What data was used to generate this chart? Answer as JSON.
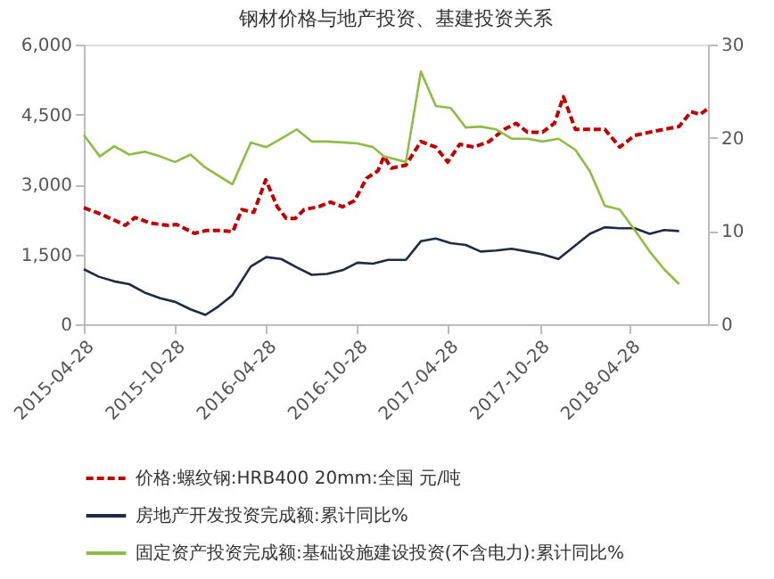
{
  "chart_data": {
    "type": "line",
    "title": "钢材价格与地产投资、基建投资关系",
    "xlim": [
      "2015-04-28",
      "2018-10-01"
    ],
    "xticks": [
      "2015-04-28",
      "2015-10-28",
      "2016-04-28",
      "2016-10-28",
      "2017-04-28",
      "2017-10-28",
      "2018-04-28"
    ],
    "ylim": [
      0,
      6000
    ],
    "yticks": [
      {
        "value": 0,
        "label": "0"
      },
      {
        "value": 1500,
        "label": "1,500"
      },
      {
        "value": 3000,
        "label": "3,000"
      },
      {
        "value": 4500,
        "label": "4,500"
      },
      {
        "value": 6000,
        "label": "6,000"
      }
    ],
    "y2lim": [
      0,
      30
    ],
    "y2ticks": [
      0,
      10,
      20,
      30
    ],
    "grid": false,
    "legend": "bottom",
    "series": [
      {
        "name": "价格:螺纹钢:HRB400 20mm:全国 元/吨",
        "color": "#c00000",
        "line_style": "dashed",
        "x": [
          "2015-04-28",
          "2015-05-30",
          "2015-07-05",
          "2015-07-20",
          "2015-08-09",
          "2015-09-08",
          "2015-10-14",
          "2015-10-31",
          "2015-12-06",
          "2015-12-30",
          "2016-01-23",
          "2016-02-21",
          "2016-03-10",
          "2016-04-03",
          "2016-04-27",
          "2016-05-20",
          "2016-06-07",
          "2016-06-25",
          "2016-07-13",
          "2016-08-11",
          "2016-09-04",
          "2016-09-28",
          "2016-10-22",
          "2016-11-15",
          "2016-12-08",
          "2016-12-20",
          "2017-01-04",
          "2017-02-02",
          "2017-03-04",
          "2017-04-03",
          "2017-04-27",
          "2017-05-21",
          "2017-06-19",
          "2017-07-19",
          "2017-08-18",
          "2017-09-11",
          "2017-10-04",
          "2017-11-03",
          "2017-11-27",
          "2017-12-15",
          "2018-01-08",
          "2018-02-06",
          "2018-03-08",
          "2018-04-07",
          "2018-05-07",
          "2018-06-06",
          "2018-07-05",
          "2018-08-04",
          "2018-08-28",
          "2018-09-15",
          "2018-09-30"
        ],
        "values": [
          2500,
          2370,
          2200,
          2120,
          2290,
          2170,
          2120,
          2140,
          1950,
          2010,
          2010,
          1990,
          2460,
          2400,
          3100,
          2520,
          2270,
          2270,
          2460,
          2520,
          2620,
          2520,
          2650,
          3130,
          3290,
          3600,
          3350,
          3410,
          3920,
          3800,
          3480,
          3860,
          3800,
          3920,
          4180,
          4310,
          4120,
          4120,
          4310,
          4880,
          4180,
          4180,
          4180,
          3800,
          4050,
          4120,
          4180,
          4240,
          4560,
          4500,
          4620
        ]
      },
      {
        "name": "房地产开发投资完成额:累计同比%",
        "color": "#1f2a44",
        "line_style": "solid",
        "axis": "y2",
        "x": [
          "2015-04-28",
          "2015-05-28",
          "2015-06-28",
          "2015-07-28",
          "2015-08-28",
          "2015-09-28",
          "2015-10-28",
          "2015-11-28",
          "2015-12-28",
          "2016-01-20",
          "2016-02-20",
          "2016-03-28",
          "2016-04-28",
          "2016-05-28",
          "2016-06-28",
          "2016-07-28",
          "2016-08-28",
          "2016-09-28",
          "2016-10-28",
          "2016-11-28",
          "2016-12-28",
          "2017-02-02",
          "2017-03-04",
          "2017-04-03",
          "2017-05-03",
          "2017-06-02",
          "2017-07-02",
          "2017-08-02",
          "2017-09-02",
          "2017-10-04",
          "2017-11-03",
          "2017-12-05",
          "2018-02-06",
          "2018-03-08",
          "2018-04-07",
          "2018-05-07",
          "2018-06-06",
          "2018-07-05",
          "2018-08-04"
        ],
        "values": [
          5.9,
          5.1,
          4.6,
          4.3,
          3.4,
          2.8,
          2.4,
          1.6,
          1.0,
          1.8,
          3.1,
          6.2,
          7.2,
          7.0,
          6.1,
          5.3,
          5.4,
          5.8,
          6.6,
          6.5,
          6.9,
          6.9,
          8.9,
          9.2,
          8.7,
          8.5,
          7.8,
          7.9,
          8.1,
          7.8,
          7.5,
          7.0,
          9.7,
          10.4,
          10.3,
          10.3,
          9.7,
          10.1,
          10.0
        ]
      },
      {
        "name": "固定资产投资完成额:基础设施建设投资(不含电力):累计同比%",
        "color": "#8fbc45",
        "line_style": "solid",
        "axis": "y2",
        "x": [
          "2015-04-28",
          "2015-05-30",
          "2015-06-28",
          "2015-07-28",
          "2015-08-28",
          "2015-09-28",
          "2015-10-28",
          "2015-11-28",
          "2015-12-28",
          "2016-02-20",
          "2016-03-28",
          "2016-04-28",
          "2016-05-28",
          "2016-06-28",
          "2016-07-28",
          "2016-08-28",
          "2016-09-28",
          "2016-10-28",
          "2016-11-28",
          "2016-12-20",
          "2017-02-02",
          "2017-03-04",
          "2017-04-03",
          "2017-05-03",
          "2017-06-02",
          "2017-07-02",
          "2017-08-02",
          "2017-09-02",
          "2017-10-04",
          "2017-11-03",
          "2017-12-05",
          "2018-01-08",
          "2018-02-06",
          "2018-03-08",
          "2018-04-07",
          "2018-05-07",
          "2018-06-06",
          "2018-07-05",
          "2018-08-04"
        ],
        "values": [
          20.3,
          18.0,
          19.1,
          18.2,
          18.5,
          18.0,
          17.4,
          18.2,
          16.8,
          15.0,
          19.5,
          19.0,
          19.9,
          20.9,
          19.6,
          19.6,
          19.5,
          19.4,
          19.0,
          18.0,
          17.4,
          27.1,
          23.4,
          23.2,
          21.1,
          21.2,
          20.9,
          19.9,
          19.9,
          19.6,
          19.9,
          18.7,
          16.4,
          12.7,
          12.3,
          10.1,
          7.8,
          5.9,
          4.3
        ]
      }
    ]
  }
}
